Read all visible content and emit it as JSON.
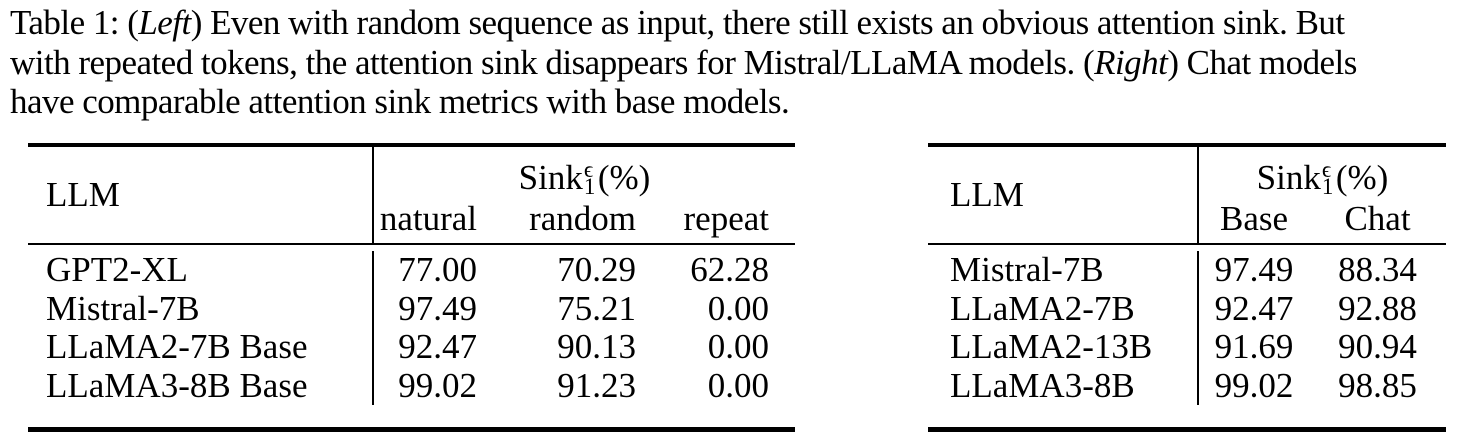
{
  "colors": {
    "background": "#ffffff",
    "text": "#000000",
    "rule": "#000000"
  },
  "caption": {
    "label_line1_pre": "Table 1: (",
    "label_line1_italic": "Left",
    "label_line1_post": ") Even with random sequence as input, there still exists an obvious attention sink. But",
    "label_line2_pre": "with repeated tokens, the attention sink disappears for Mistral/LLaMA models. (",
    "label_line2_italic": "Right",
    "label_line2_post": ") Chat models",
    "label_line3": "have comparable attention sink metrics with base models."
  },
  "metric": {
    "name": "Sink",
    "sup": "ϵ",
    "sub": "1",
    "unit": "(%)"
  },
  "left_table": {
    "llm_header": "LLM",
    "columns": [
      "natural",
      "random",
      "repeat"
    ],
    "rows": [
      {
        "llm": "GPT2-XL",
        "values": [
          "77.00",
          "70.29",
          "62.28"
        ]
      },
      {
        "llm": "Mistral-7B",
        "values": [
          "97.49",
          "75.21",
          "0.00"
        ]
      },
      {
        "llm": "LLaMA2-7B Base",
        "values": [
          "92.47",
          "90.13",
          "0.00"
        ]
      },
      {
        "llm": "LLaMA3-8B Base",
        "values": [
          "99.02",
          "91.23",
          "0.00"
        ]
      }
    ]
  },
  "right_table": {
    "llm_header": "LLM",
    "columns": [
      "Base",
      "Chat"
    ],
    "rows": [
      {
        "llm": "Mistral-7B",
        "values": [
          "97.49",
          "88.34"
        ]
      },
      {
        "llm": "LLaMA2-7B",
        "values": [
          "92.47",
          "92.88"
        ]
      },
      {
        "llm": "LLaMA2-13B",
        "values": [
          "91.69",
          "90.94"
        ]
      },
      {
        "llm": "LLaMA3-8B",
        "values": [
          "99.02",
          "98.85"
        ]
      }
    ]
  }
}
